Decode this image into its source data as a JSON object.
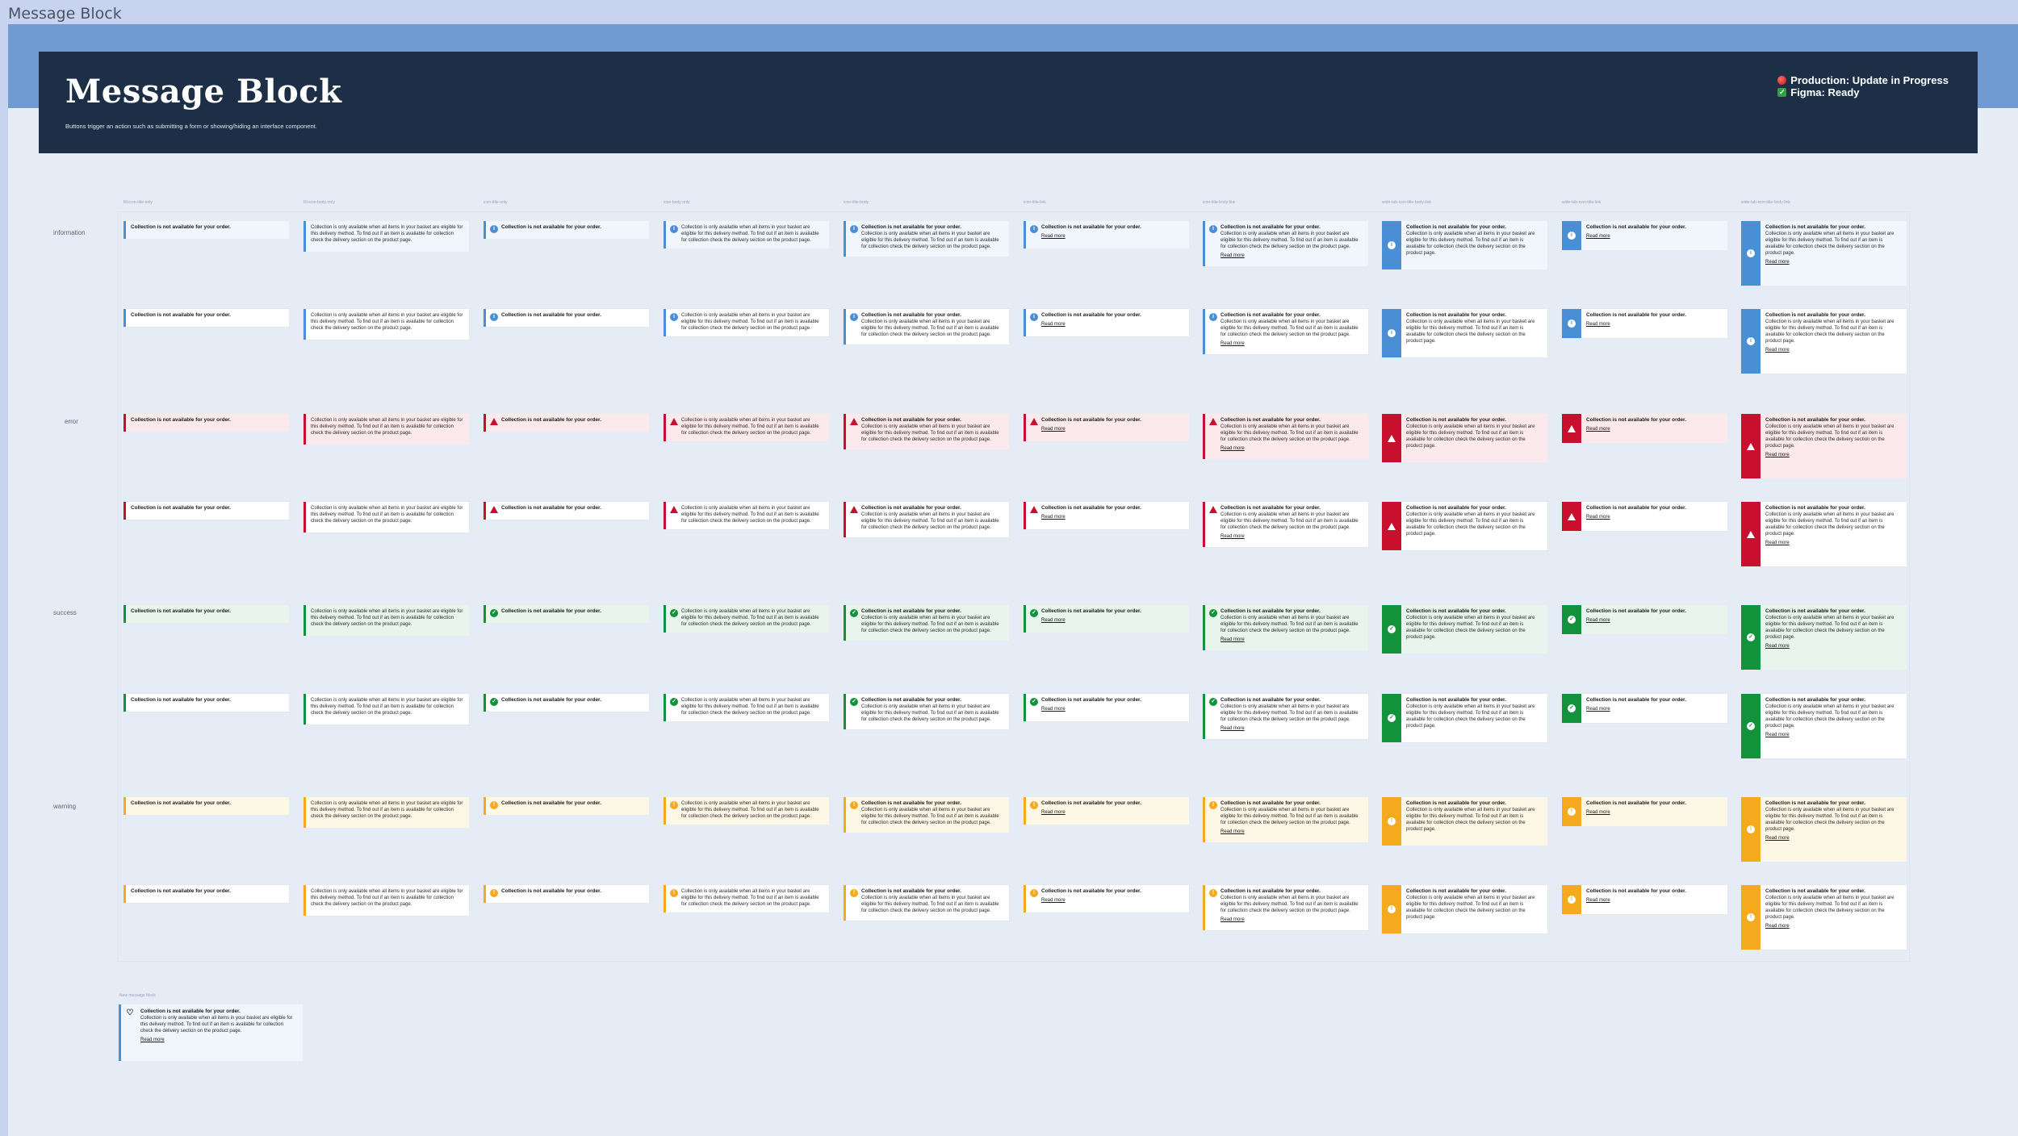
{
  "canvas": {
    "frame_label": "Message Block"
  },
  "header": {
    "title": "Message Block",
    "subtitle": "Buttons trigger an action such as submitting a form or showing/hiding an interface component.",
    "status_production": "Production: Update in Progress",
    "status_figma": "Figma: Ready"
  },
  "columns": [
    "fill-icon-title-only",
    "fill-icon-body-only",
    "icon-title-only",
    "icon-body-only",
    "icon-title-body",
    "icon-title-link",
    "icon-title-body-link",
    "wide-tab-icon-title-body-link",
    "wide-tab-icon-title-link",
    "wide-tab-icon-title-body-link"
  ],
  "rows": [
    "information",
    "error",
    "success",
    "warning"
  ],
  "message": {
    "title": "Collection is not available for your order.",
    "body": "Collection is only available when all items in your basket are eligible for this delivery method. To find out if an item is available for collection check the delivery section on the product page.",
    "link": "Read more"
  },
  "standalone": {
    "label": "New message block"
  },
  "colors": {
    "information": {
      "accent": "#4a8fd6",
      "fill": "#f1f6fc"
    },
    "error": {
      "accent": "#c8102e",
      "fill": "#fce9ec"
    },
    "success": {
      "accent": "#12923a",
      "fill": "#e8f5ec"
    },
    "warning": {
      "accent": "#f5a91c",
      "fill": "#fdf7e6"
    }
  }
}
